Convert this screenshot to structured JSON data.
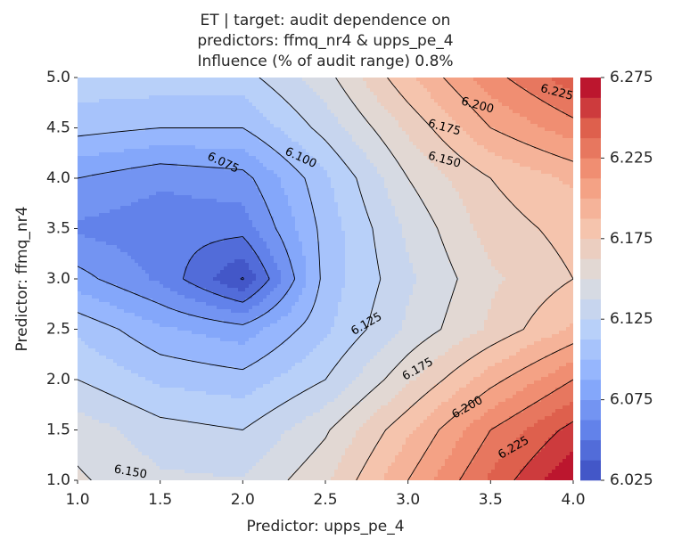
{
  "chart_data": {
    "type": "contour",
    "title_lines": [
      "ET | target: audit dependence on",
      "predictors: ffmq_nr4 & upps_pe_4",
      "Influence (% of audit range) 0.8%"
    ],
    "xlabel": "Predictor: upps_pe_4",
    "ylabel": "Predictor: ffmq_nr4",
    "xlim": [
      1.0,
      4.0
    ],
    "ylim": [
      1.0,
      5.0
    ],
    "x_ticks": [
      "1.0",
      "1.5",
      "2.0",
      "2.5",
      "3.0",
      "3.5",
      "4.0"
    ],
    "y_ticks": [
      "1.0",
      "1.5",
      "2.0",
      "2.5",
      "3.0",
      "3.5",
      "4.0",
      "4.5",
      "5.0"
    ],
    "grid": false,
    "x": [
      1.0,
      1.5,
      2.0,
      2.5,
      3.0,
      3.5,
      4.0
    ],
    "y": [
      1.0,
      1.5,
      2.0,
      2.5,
      3.0,
      3.5,
      4.0,
      4.5,
      5.0
    ],
    "z": [
      [
        6.152,
        6.14,
        6.138,
        6.16,
        6.2,
        6.24,
        6.275
      ],
      [
        6.145,
        6.13,
        6.125,
        6.148,
        6.185,
        6.225,
        6.255
      ],
      [
        6.125,
        6.11,
        6.105,
        6.125,
        6.16,
        6.195,
        6.225
      ],
      [
        6.11,
        6.09,
        6.08,
        6.11,
        6.14,
        6.165,
        6.19
      ],
      [
        6.08,
        6.06,
        6.024,
        6.105,
        6.135,
        6.16,
        6.175
      ],
      [
        6.06,
        6.055,
        6.055,
        6.105,
        6.14,
        6.168,
        6.18
      ],
      [
        6.075,
        6.065,
        6.07,
        6.11,
        6.15,
        6.175,
        6.19
      ],
      [
        6.105,
        6.1,
        6.1,
        6.13,
        6.165,
        6.2,
        6.22
      ],
      [
        6.12,
        6.12,
        6.12,
        6.145,
        6.185,
        6.22,
        6.245
      ]
    ],
    "fill_levels": [
      6.025,
      6.0375,
      6.05,
      6.0625,
      6.075,
      6.0875,
      6.1,
      6.1125,
      6.125,
      6.1375,
      6.15,
      6.1625,
      6.175,
      6.1875,
      6.2,
      6.2125,
      6.225,
      6.2375,
      6.25,
      6.2625,
      6.275
    ],
    "line_levels": [
      6.025,
      6.05,
      6.075,
      6.1,
      6.125,
      6.15,
      6.175,
      6.2,
      6.225,
      6.25
    ],
    "contour_labels": [
      {
        "text": "6.075",
        "x": 1.88,
        "y": 4.15,
        "angle": 25
      },
      {
        "text": "6.100",
        "x": 2.35,
        "y": 4.2,
        "angle": 25
      },
      {
        "text": "6.125",
        "x": 2.75,
        "y": 2.55,
        "angle": -30
      },
      {
        "text": "6.150",
        "x": 1.32,
        "y": 1.08,
        "angle": 10
      },
      {
        "text": "6.150",
        "x": 3.22,
        "y": 4.18,
        "angle": 15
      },
      {
        "text": "6.175",
        "x": 3.22,
        "y": 4.5,
        "angle": 15
      },
      {
        "text": "6.200",
        "x": 3.42,
        "y": 4.72,
        "angle": 15
      },
      {
        "text": "6.225",
        "x": 3.9,
        "y": 4.85,
        "angle": 15
      },
      {
        "text": "6.175",
        "x": 3.06,
        "y": 2.1,
        "angle": -30
      },
      {
        "text": "6.200",
        "x": 3.36,
        "y": 1.72,
        "angle": -30
      },
      {
        "text": "6.225",
        "x": 3.64,
        "y": 1.32,
        "angle": -30
      }
    ],
    "colorbar": {
      "boundaries": [
        6.025,
        6.0375,
        6.05,
        6.0625,
        6.075,
        6.0875,
        6.1,
        6.1125,
        6.125,
        6.1375,
        6.15,
        6.1625,
        6.175,
        6.1875,
        6.2,
        6.2125,
        6.225,
        6.2375,
        6.25,
        6.2625,
        6.275
      ],
      "tick_values": [
        6.025,
        6.075,
        6.125,
        6.175,
        6.225,
        6.275
      ],
      "tick_labels": [
        "6.025",
        "6.075",
        "6.125",
        "6.175",
        "6.225",
        "6.275"
      ]
    },
    "colormap": "coolwarm"
  }
}
